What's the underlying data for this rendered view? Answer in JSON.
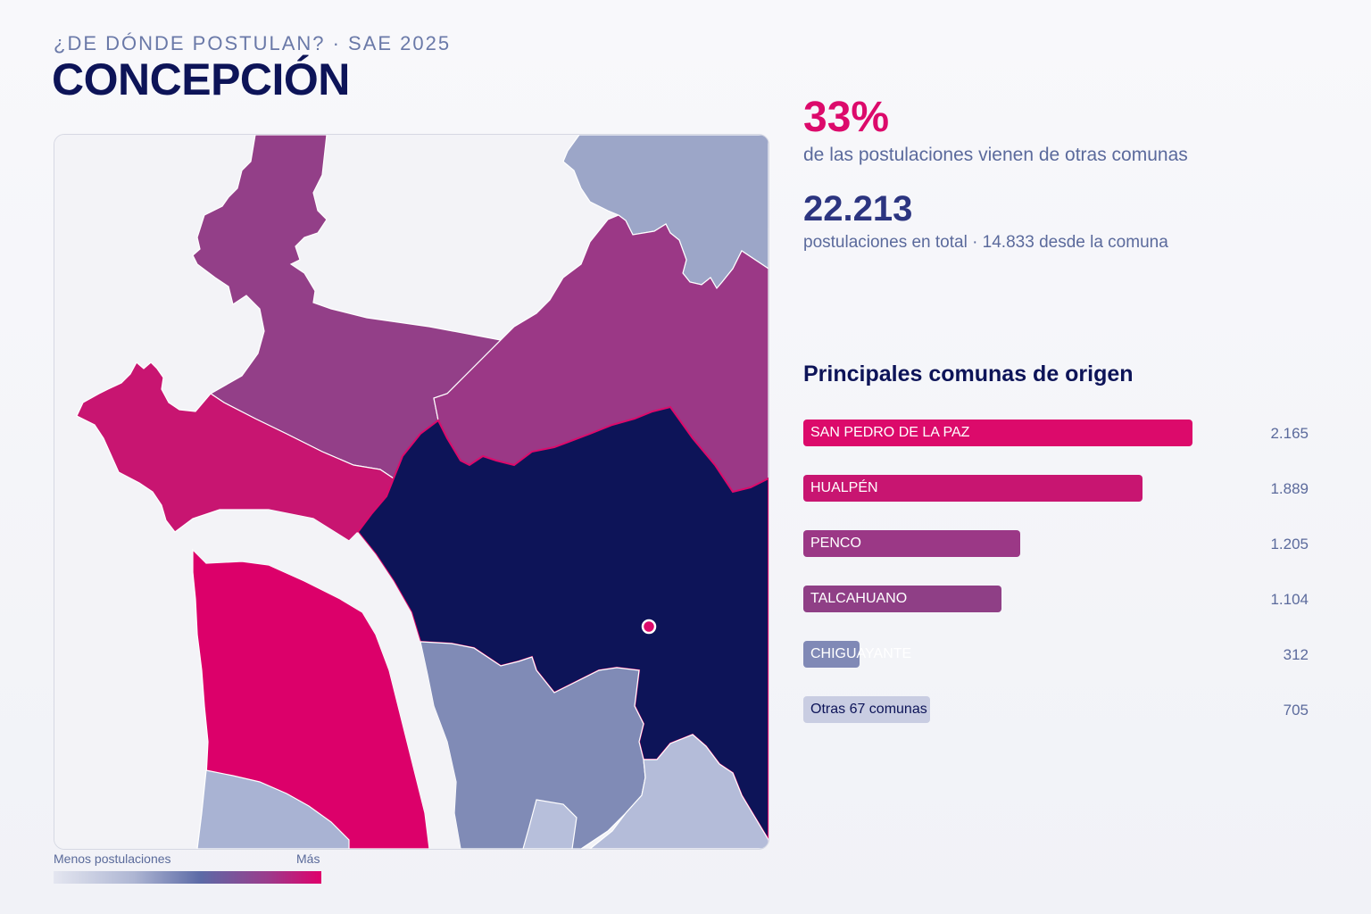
{
  "header": {
    "eyebrow": "¿DE DÓNDE POSTULAN? · SAE 2025",
    "title": "CONCEPCIÓN"
  },
  "stats": {
    "percent": "33%",
    "percent_label": "de las postulaciones vienen de otras comunas",
    "total": "22.213",
    "total_label": "postulaciones en total · 14.833 desde la comuna"
  },
  "list_title": "Principales comunas de origen",
  "legend": {
    "low": "Menos postulaciones",
    "high": "Más"
  },
  "colors": {
    "accent": "#dc0a6b",
    "navy": "#0d1458",
    "magenta": "#9b3a86",
    "slate": "#7f8cb7",
    "pale": "#a9b3d3"
  },
  "chart_data": {
    "type": "bar",
    "orientation": "horizontal",
    "title": "Principales comunas de origen",
    "categories": [
      "SAN PEDRO DE LA PAZ",
      "HUALPÉN",
      "PENCO",
      "TALCAHUANO",
      "CHIGUAYANTE",
      "Otras 67 comunas"
    ],
    "values": [
      2165,
      1889,
      1205,
      1104,
      312,
      705
    ],
    "value_labels": [
      "2.165",
      "1.889",
      "1.205",
      "1.104",
      "312",
      "705"
    ],
    "bar_colors": [
      "#dc0a6b",
      "#c81571",
      "#9b3886",
      "#8f3f86",
      "#8089b6",
      "#c9cde2"
    ]
  }
}
